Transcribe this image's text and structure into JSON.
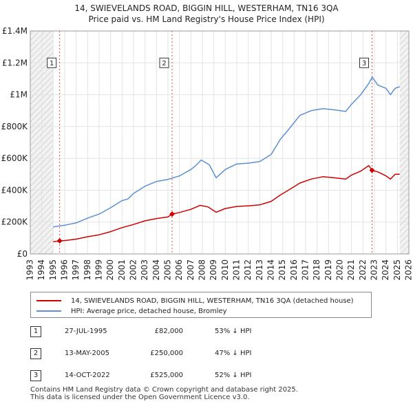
{
  "chart_data": {
    "type": "line",
    "title": "14, SWIEVELANDS ROAD, BIGGIN HILL, WESTERHAM, TN16 3QA",
    "subtitle": "Price paid vs. HM Land Registry's House Price Index (HPI)",
    "xlim": [
      1993,
      2026
    ],
    "ylim": [
      0,
      1400000
    ],
    "x_ticks": [
      1993,
      1994,
      1995,
      1996,
      1997,
      1998,
      1999,
      2000,
      2001,
      2002,
      2003,
      2004,
      2005,
      2006,
      2007,
      2008,
      2009,
      2010,
      2011,
      2012,
      2013,
      2014,
      2015,
      2016,
      2017,
      2018,
      2019,
      2020,
      2021,
      2022,
      2023,
      2024,
      2025,
      2026
    ],
    "y_ticks": [
      {
        "value": 0,
        "label": "£0"
      },
      {
        "value": 200000,
        "label": "£200K"
      },
      {
        "value": 400000,
        "label": "£400K"
      },
      {
        "value": 600000,
        "label": "£600K"
      },
      {
        "value": 800000,
        "label": "£800K"
      },
      {
        "value": 1000000,
        "label": "£1M"
      },
      {
        "value": 1200000,
        "label": "£1.2M"
      },
      {
        "value": 1400000,
        "label": "£1.4M"
      }
    ],
    "hatch_ranges": [
      [
        1993,
        1995.0
      ],
      [
        2025.2,
        2026
      ]
    ],
    "series": [
      {
        "name": "14, SWIEVELANDS ROAD, BIGGIN HILL, WESTERHAM, TN16 3QA (detached house)",
        "color": "#cc0000",
        "points": [
          [
            1995.0,
            76000
          ],
          [
            1995.56,
            82000
          ],
          [
            1996.0,
            84000
          ],
          [
            1997.0,
            93000
          ],
          [
            1998.0,
            108000
          ],
          [
            1999.0,
            120000
          ],
          [
            2000.0,
            140000
          ],
          [
            2001.0,
            165000
          ],
          [
            2002.0,
            185000
          ],
          [
            2003.0,
            208000
          ],
          [
            2004.0,
            222000
          ],
          [
            2005.0,
            232000
          ],
          [
            2005.36,
            250000
          ],
          [
            2006.0,
            260000
          ],
          [
            2007.0,
            280000
          ],
          [
            2007.8,
            305000
          ],
          [
            2008.5,
            295000
          ],
          [
            2009.2,
            262000
          ],
          [
            2010.0,
            285000
          ],
          [
            2011.0,
            298000
          ],
          [
            2012.0,
            302000
          ],
          [
            2013.0,
            308000
          ],
          [
            2014.0,
            330000
          ],
          [
            2014.8,
            370000
          ],
          [
            2015.5,
            400000
          ],
          [
            2016.5,
            445000
          ],
          [
            2017.5,
            470000
          ],
          [
            2018.5,
            485000
          ],
          [
            2019.5,
            478000
          ],
          [
            2020.5,
            470000
          ],
          [
            2021.0,
            495000
          ],
          [
            2021.8,
            520000
          ],
          [
            2022.5,
            555000
          ],
          [
            2022.79,
            525000
          ],
          [
            2023.3,
            515000
          ],
          [
            2024.0,
            490000
          ],
          [
            2024.4,
            470000
          ],
          [
            2024.8,
            500000
          ],
          [
            2025.2,
            500000
          ]
        ]
      },
      {
        "name": "HPI: Average price, detached house, Bromley",
        "color": "#5b8fd0",
        "points": [
          [
            1995.0,
            170000
          ],
          [
            1996.0,
            180000
          ],
          [
            1997.0,
            195000
          ],
          [
            1998.0,
            225000
          ],
          [
            1999.0,
            250000
          ],
          [
            2000.0,
            290000
          ],
          [
            2001.0,
            335000
          ],
          [
            2001.5,
            345000
          ],
          [
            2002.0,
            380000
          ],
          [
            2003.0,
            425000
          ],
          [
            2004.0,
            455000
          ],
          [
            2005.0,
            468000
          ],
          [
            2006.0,
            490000
          ],
          [
            2007.0,
            530000
          ],
          [
            2007.5,
            560000
          ],
          [
            2007.9,
            590000
          ],
          [
            2008.6,
            560000
          ],
          [
            2009.2,
            478000
          ],
          [
            2010.0,
            530000
          ],
          [
            2011.0,
            565000
          ],
          [
            2012.0,
            570000
          ],
          [
            2013.0,
            580000
          ],
          [
            2014.0,
            625000
          ],
          [
            2014.8,
            720000
          ],
          [
            2015.5,
            780000
          ],
          [
            2016.5,
            870000
          ],
          [
            2017.5,
            900000
          ],
          [
            2018.5,
            912000
          ],
          [
            2019.5,
            905000
          ],
          [
            2020.5,
            895000
          ],
          [
            2021.0,
            940000
          ],
          [
            2021.8,
            1000000
          ],
          [
            2022.5,
            1070000
          ],
          [
            2022.8,
            1110000
          ],
          [
            2023.3,
            1060000
          ],
          [
            2024.0,
            1040000
          ],
          [
            2024.4,
            1000000
          ],
          [
            2024.8,
            1040000
          ],
          [
            2025.2,
            1050000
          ]
        ]
      }
    ],
    "sales": [
      {
        "marker": "1",
        "x": 1995.56,
        "price": 82000,
        "date": "27-JUL-1995",
        "price_label": "£82,000",
        "hpi_label": "53% ↓ HPI"
      },
      {
        "marker": "2",
        "x": 2005.36,
        "price": 250000,
        "date": "13-MAY-2005",
        "price_label": "£250,000",
        "hpi_label": "47% ↓ HPI"
      },
      {
        "marker": "3",
        "x": 2022.79,
        "price": 525000,
        "date": "14-OCT-2022",
        "price_label": "£525,000",
        "hpi_label": "52% ↓ HPI"
      }
    ]
  },
  "legend": {
    "property_label": "14, SWIEVELANDS ROAD, BIGGIN HILL, WESTERHAM, TN16 3QA (detached house)",
    "hpi_label": "HPI: Average price, detached house, Bromley",
    "property_color": "#cc0000",
    "hpi_color": "#5b8fd0"
  },
  "footer": {
    "line1": "Contains HM Land Registry data © Crown copyright and database right 2025.",
    "line2": "This data is licensed under the Open Government Licence v3.0."
  }
}
